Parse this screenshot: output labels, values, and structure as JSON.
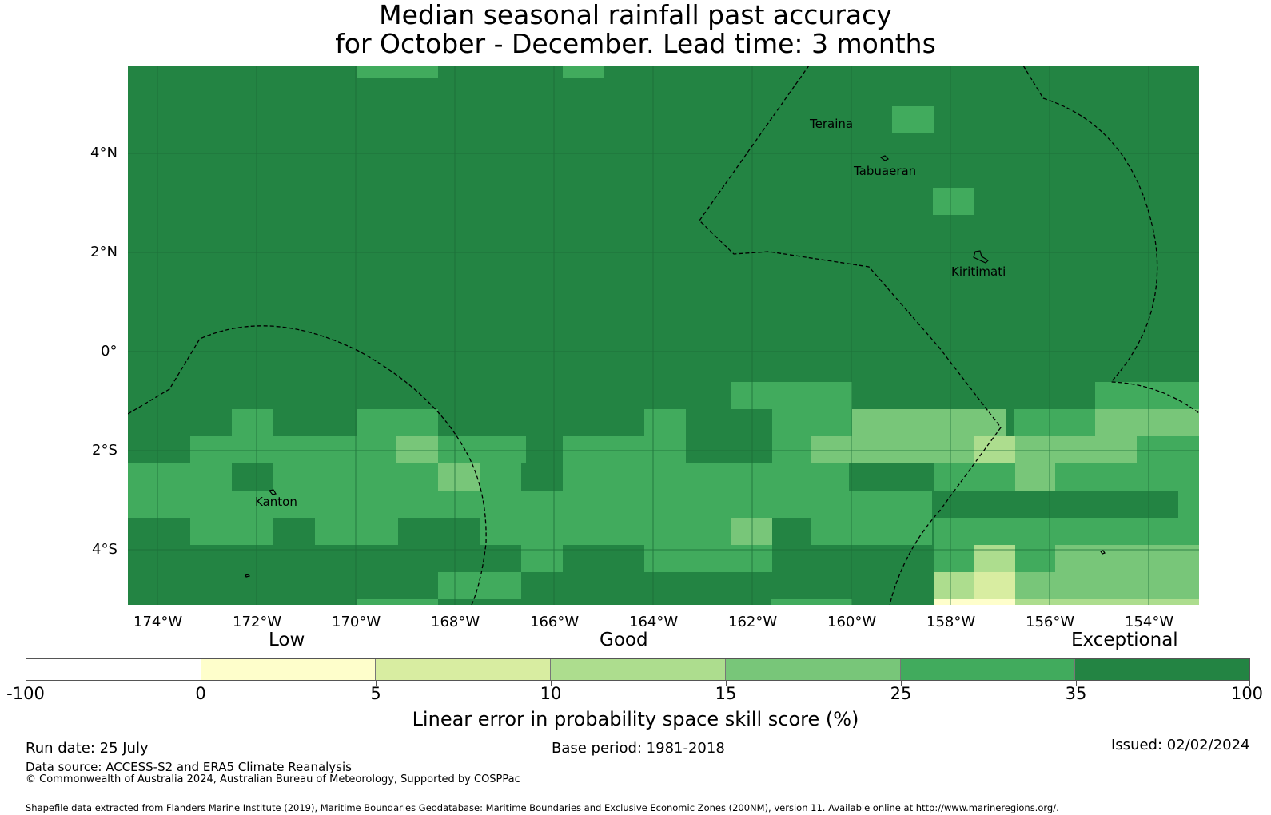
{
  "title": {
    "line1": "Median seasonal rainfall past accuracy",
    "line2": "for October - December. Lead time: 3 months"
  },
  "map": {
    "lon_ticks": [
      "174°W",
      "172°W",
      "170°W",
      "168°W",
      "166°W",
      "164°W",
      "162°W",
      "160°W",
      "158°W",
      "156°W",
      "154°W"
    ],
    "lat_ticks": [
      "4°N",
      "2°N",
      "0°",
      "2°S",
      "4°S"
    ],
    "places": [
      "Teraina",
      "Tabuaeran",
      "Kiritimati",
      "Kanton"
    ]
  },
  "legend": {
    "categories": [
      "Low",
      "Good",
      "Exceptional"
    ],
    "bins": [
      {
        "from": "-100",
        "color": "#ffffff"
      },
      {
        "from": "0",
        "color": "#fefecb"
      },
      {
        "from": "5",
        "color": "#d8eda1"
      },
      {
        "from": "10",
        "color": "#addd8e"
      },
      {
        "from": "15",
        "color": "#78c679"
      },
      {
        "from": "25",
        "color": "#41ab5d"
      },
      {
        "from": "35",
        "color": "#238443"
      }
    ],
    "tick_values": [
      "-100",
      "0",
      "5",
      "10",
      "15",
      "25",
      "35",
      "100"
    ],
    "label": "Linear error in probability space skill score (%)"
  },
  "footer": {
    "run_date": "Run date: 25 July",
    "base_period": "Base period: 1981-2018",
    "issued": "Issued: 02/02/2024",
    "data_source": "Data source: ACCESS-S2 and ERA5 Climate Reanalysis",
    "copyright": "© Commonwealth of Australia 2024, Australian Bureau of Meteorology, Supported by COSPPac",
    "shapefile": "Shapefile data extracted from Flanders Marine Institute (2019), Maritime Boundaries Geodatabase: Maritime Boundaries and Exclusive Economic Zones (200NM), version 11. Available online at http://www.marineregions.org/."
  }
}
